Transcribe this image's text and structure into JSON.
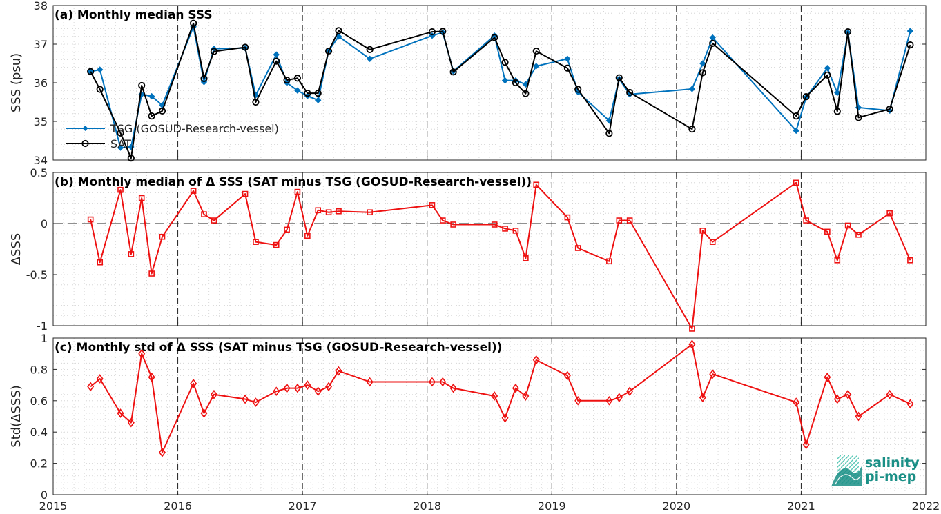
{
  "colors": {
    "tsg": "#0072BD",
    "sat": "#000000",
    "delta": "#EE1111",
    "logo_dark": "#1a8f86",
    "logo_light": "#5cc9b8"
  },
  "x_axis": {
    "ticks": [
      2015,
      2016,
      2017,
      2018,
      2019,
      2020,
      2021,
      2022
    ],
    "tick_labels": [
      "2015",
      "2016",
      "2017",
      "2018",
      "2019",
      "2020",
      "2021",
      "2022"
    ],
    "range": [
      2015,
      2022
    ]
  },
  "logo": {
    "line1": "salinity",
    "line2": "pi-mep",
    "icon": "salinity-wave-logo-icon"
  },
  "chart_data": [
    {
      "type": "line",
      "title": "(a) Monthly median SSS",
      "xlabel": "",
      "ylabel": "SSS (psu)",
      "ylim": [
        34,
        38
      ],
      "yticks": [
        34,
        35,
        36,
        37,
        38
      ],
      "ytick_labels": [
        "34",
        "35",
        "36",
        "37",
        "38"
      ],
      "grid": true,
      "legend": "left",
      "series": [
        {
          "name": "TSG (GOSUD-Research-vessel)",
          "marker": "diamond-filled",
          "x": [
            2015.3,
            2015.375,
            2015.54,
            2015.625,
            2015.71,
            2015.79,
            2015.875,
            2016.125,
            2016.21,
            2016.29,
            2016.54,
            2016.625,
            2016.79,
            2016.875,
            2016.96,
            2017.04,
            2017.125,
            2017.21,
            2017.29,
            2017.54,
            2018.04,
            2018.125,
            2018.21,
            2018.54,
            2018.625,
            2018.71,
            2018.79,
            2018.875,
            2019.125,
            2019.21,
            2019.46,
            2019.54,
            2019.625,
            2020.125,
            2020.21,
            2020.29,
            2020.96,
            2021.04,
            2021.21,
            2021.29,
            2021.375,
            2021.46,
            2021.71,
            2021.875
          ],
          "y": [
            36.29,
            36.34,
            34.32,
            34.34,
            35.7,
            35.65,
            35.42,
            37.45,
            36.02,
            36.88,
            36.9,
            35.68,
            36.73,
            36.0,
            35.8,
            35.66,
            35.55,
            36.83,
            37.2,
            36.62,
            37.22,
            37.3,
            36.3,
            37.22,
            36.06,
            36.06,
            35.96,
            36.43,
            36.62,
            35.76,
            35.02,
            36.1,
            35.7,
            35.84,
            36.5,
            37.17,
            34.76,
            35.62,
            36.38,
            35.74,
            37.3,
            35.36,
            35.28,
            37.34
          ]
        },
        {
          "name": "SAT",
          "marker": "circle-open",
          "x": [
            2015.3,
            2015.375,
            2015.54,
            2015.625,
            2015.71,
            2015.79,
            2015.875,
            2016.125,
            2016.21,
            2016.29,
            2016.54,
            2016.625,
            2016.79,
            2016.875,
            2016.96,
            2017.04,
            2017.125,
            2017.21,
            2017.29,
            2017.54,
            2018.04,
            2018.125,
            2018.21,
            2018.54,
            2018.625,
            2018.71,
            2018.79,
            2018.875,
            2019.125,
            2019.21,
            2019.46,
            2019.54,
            2019.625,
            2020.125,
            2020.21,
            2020.29,
            2020.96,
            2021.04,
            2021.21,
            2021.29,
            2021.375,
            2021.46,
            2021.71,
            2021.875
          ],
          "y": [
            36.29,
            35.83,
            34.7,
            34.05,
            35.93,
            35.14,
            35.27,
            37.54,
            36.11,
            36.81,
            36.92,
            35.5,
            36.56,
            36.07,
            36.12,
            35.73,
            35.73,
            36.82,
            37.35,
            36.86,
            37.32,
            37.33,
            36.28,
            37.17,
            36.53,
            36.0,
            35.72,
            36.82,
            36.38,
            35.83,
            34.69,
            36.13,
            35.75,
            34.8,
            36.26,
            37.02,
            35.14,
            35.64,
            36.2,
            35.26,
            37.32,
            35.1,
            35.32,
            36.98
          ]
        }
      ]
    },
    {
      "type": "line",
      "title": "(b) Monthly median of Δ SSS (SAT minus TSG (GOSUD-Research-vessel))",
      "xlabel": "",
      "ylabel": "ΔSSS",
      "ylim": [
        -1,
        0.5
      ],
      "yticks": [
        -1,
        -0.5,
        0,
        0.5
      ],
      "ytick_labels": [
        "-1",
        "-0.5",
        "0",
        "0.5"
      ],
      "zero_line": "dashed",
      "grid": true,
      "series": [
        {
          "marker": "square-open",
          "x": [
            2015.3,
            2015.375,
            2015.54,
            2015.625,
            2015.71,
            2015.79,
            2015.875,
            2016.125,
            2016.21,
            2016.29,
            2016.54,
            2016.625,
            2016.79,
            2016.875,
            2016.96,
            2017.04,
            2017.125,
            2017.21,
            2017.29,
            2017.54,
            2018.04,
            2018.125,
            2018.21,
            2018.54,
            2018.625,
            2018.71,
            2018.79,
            2018.875,
            2019.125,
            2019.21,
            2019.46,
            2019.54,
            2019.625,
            2020.125,
            2020.21,
            2020.29,
            2020.96,
            2021.04,
            2021.21,
            2021.29,
            2021.375,
            2021.46,
            2021.71,
            2021.875
          ],
          "y": [
            0.04,
            -0.38,
            0.33,
            -0.3,
            0.25,
            -0.49,
            -0.13,
            0.32,
            0.09,
            0.03,
            0.29,
            -0.18,
            -0.21,
            -0.06,
            0.31,
            -0.12,
            0.13,
            0.11,
            0.12,
            0.11,
            0.18,
            0.03,
            -0.01,
            -0.01,
            -0.05,
            -0.07,
            -0.34,
            0.38,
            0.06,
            -0.24,
            -0.37,
            0.03,
            0.03,
            -1.03,
            -0.07,
            -0.18,
            0.4,
            0.03,
            -0.08,
            -0.36,
            -0.02,
            -0.11,
            0.1,
            -0.36
          ]
        }
      ]
    },
    {
      "type": "line",
      "title": "(c) Monthly std of Δ SSS (SAT minus TSG (GOSUD-Research-vessel))",
      "xlabel": "",
      "ylabel": "Std(ΔSSS)",
      "ylim": [
        0,
        1
      ],
      "yticks": [
        0,
        0.2,
        0.4,
        0.6,
        0.8,
        1
      ],
      "ytick_labels": [
        "0",
        "0.2",
        "0.4",
        "0.6",
        "0.8",
        "1"
      ],
      "grid": true,
      "series": [
        {
          "marker": "diamond-open",
          "x": [
            2015.3,
            2015.375,
            2015.54,
            2015.625,
            2015.71,
            2015.79,
            2015.875,
            2016.125,
            2016.21,
            2016.29,
            2016.54,
            2016.625,
            2016.79,
            2016.875,
            2016.96,
            2017.04,
            2017.125,
            2017.21,
            2017.29,
            2017.54,
            2018.04,
            2018.125,
            2018.21,
            2018.54,
            2018.625,
            2018.71,
            2018.79,
            2018.875,
            2019.125,
            2019.21,
            2019.46,
            2019.54,
            2019.625,
            2020.125,
            2020.21,
            2020.29,
            2020.96,
            2021.04,
            2021.21,
            2021.29,
            2021.375,
            2021.46,
            2021.71,
            2021.875
          ],
          "y": [
            0.69,
            0.74,
            0.52,
            0.46,
            0.9,
            0.75,
            0.27,
            0.71,
            0.52,
            0.64,
            0.61,
            0.59,
            0.66,
            0.68,
            0.68,
            0.7,
            0.66,
            0.69,
            0.79,
            0.72,
            0.72,
            0.72,
            0.68,
            0.63,
            0.49,
            0.68,
            0.63,
            0.86,
            0.76,
            0.6,
            0.6,
            0.62,
            0.66,
            0.96,
            0.62,
            0.77,
            0.59,
            0.32,
            0.75,
            0.61,
            0.64,
            0.5,
            0.64,
            0.58
          ]
        }
      ]
    }
  ]
}
